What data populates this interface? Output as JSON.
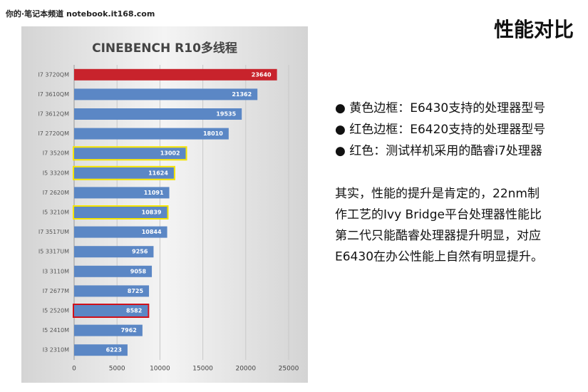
{
  "watermark": "你的·笔记本频道 notebook.it168.com",
  "heading": "性能对比",
  "bullets": [
    "● 黄色边框：E6430支持的处理器型号",
    "● 红色边框：E6420支持的处理器型号",
    "● 红色：测试样机采用的酷睿i7处理器"
  ],
  "paragraph": [
    "其实，性能的提升是肯定的，22nm制",
    "作工艺的Ivy Bridge平台处理器性能比",
    "第二代只能酷睿处理器提升明显，对应",
    "E6430在办公性能上自然有明显提升。"
  ],
  "chart_data": {
    "type": "hbar",
    "title": "CINEBENCH R10多线程",
    "categories": [
      "I7 3720QM",
      "I7 3610QM",
      "I7 3612QM",
      "I7 2720QM",
      "I7 3520M",
      "I5 3320M",
      "I7 2620M",
      "I5 3210M",
      "I7 3517UM",
      "I5 3317UM",
      "I3 3110M",
      "I7 2677M",
      "I5 2520M",
      "I5 2410M",
      "I3 2310M"
    ],
    "values": [
      23640,
      21362,
      19535,
      18010,
      13002,
      11624,
      11091,
      10839,
      10844,
      9256,
      9058,
      8725,
      8582,
      7962,
      6223
    ],
    "colors": [
      "#c8232c",
      "#5b87c5",
      "#5b87c5",
      "#5b87c5",
      "#5b87c5",
      "#5b87c5",
      "#5b87c5",
      "#5b87c5",
      "#5b87c5",
      "#5b87c5",
      "#5b87c5",
      "#5b87c5",
      "#5b87c5",
      "#5b87c5",
      "#5b87c5"
    ],
    "borders": [
      null,
      null,
      null,
      null,
      "#f5e400",
      "#f5e400",
      null,
      "#f5e400",
      null,
      null,
      null,
      null,
      "#d0101a",
      null,
      null
    ],
    "xlim": [
      0,
      25000
    ],
    "xticks": [
      0,
      5000,
      10000,
      15000,
      20000,
      25000
    ],
    "grid": true
  }
}
